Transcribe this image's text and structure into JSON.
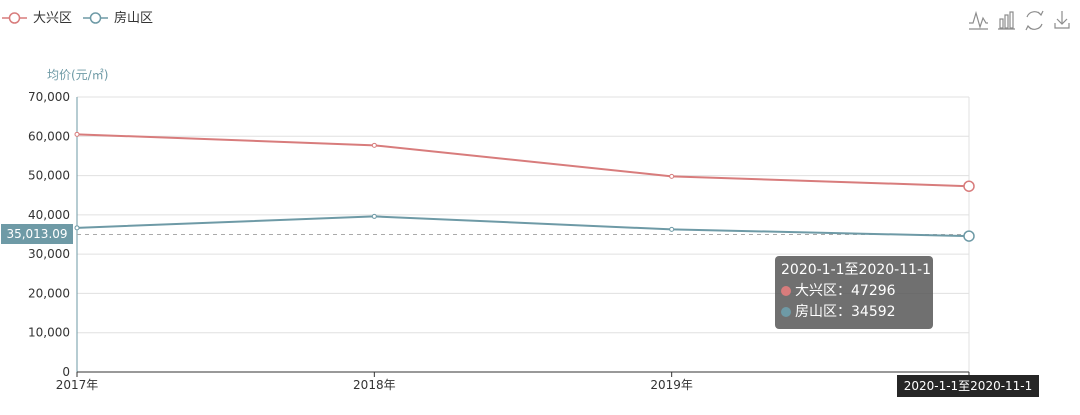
{
  "chart_data": {
    "type": "line",
    "categories": [
      "2017年",
      "2018年",
      "2019年",
      "2020-1-1至2020-11-1"
    ],
    "series": [
      {
        "name": "大兴区",
        "color": "#d87c7c",
        "values": [
          60500,
          57700,
          49800,
          47296
        ]
      },
      {
        "name": "房山区",
        "color": "#6e9aa6",
        "values": [
          36700,
          39600,
          36300,
          34592
        ]
      }
    ],
    "ylabel": "均价(元/㎡)",
    "ylim": [
      0,
      70000
    ],
    "yticks": [
      0,
      10000,
      20000,
      30000,
      40000,
      50000,
      60000,
      70000
    ],
    "ytick_labels": [
      "0",
      "10,000",
      "20,000",
      "30,000",
      "40,000",
      "50,000",
      "60,000",
      "70,000"
    ],
    "xtick_labels": [
      "2017年",
      "2018年",
      "2019年"
    ],
    "grid": true,
    "legend": "top-left",
    "pointer": {
      "y_value": 35013.09,
      "y_label": "35,013.09",
      "x_label": "2020-1-1至2020-11-1"
    },
    "tooltip": {
      "title": "2020-1-1至2020-11-1",
      "rows": [
        {
          "text": "大兴区：47296",
          "color": "#d87c7c"
        },
        {
          "text": "房山区：34592",
          "color": "#6e9aa6"
        }
      ]
    }
  },
  "toolbox": {
    "icons": [
      "line-chart-icon",
      "bar-chart-icon",
      "restore-icon",
      "download-icon"
    ]
  }
}
